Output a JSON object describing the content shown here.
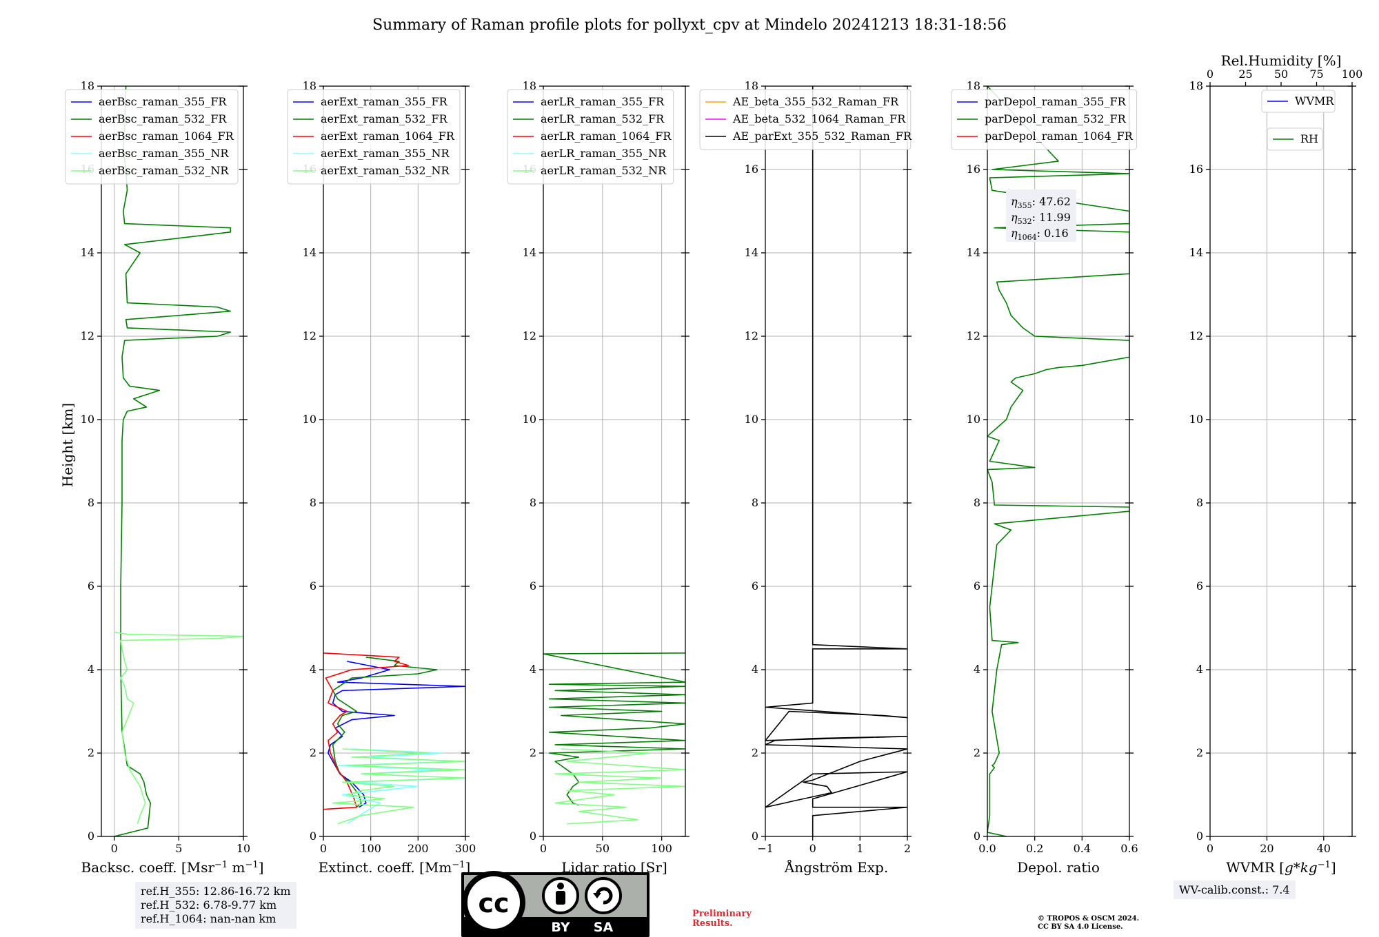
{
  "title": "Summary of Raman profile plots for pollyxt_cpv at Mindelo 20241213 18:31-18:56",
  "y_axis_label": "Height [km]",
  "colors": {
    "blue": "#0000ff",
    "green": "#008000",
    "red": "#ff0000",
    "cyan": "#80ffff",
    "lightgreen": "#80ff80",
    "orange": "#ffa500",
    "magenta": "#ff00ff",
    "black": "#000000",
    "grid": "#b0b0b0",
    "box": "#eef0f6",
    "preliminary": "#e8262b"
  },
  "chart_data": [
    {
      "type": "line",
      "panel": "backscatter",
      "xlabel": "Backsc. coeff. [Msr$^{-1}$ m$^{-1}$]",
      "ylabel": "Height [km]",
      "xlim": [
        -1,
        10
      ],
      "ylim": [
        0,
        18
      ],
      "xticks": [
        0,
        5,
        10
      ],
      "yticks": [
        0,
        2,
        4,
        6,
        8,
        10,
        12,
        14,
        16,
        18
      ],
      "grid": true,
      "legend_placement": "top-left",
      "series": [
        {
          "name": "aerBsc_raman_355_FR",
          "color": "#0000ff",
          "x": [],
          "y": []
        },
        {
          "name": "aerBsc_raman_532_FR",
          "color": "#008000",
          "x": [
            0.0,
            2.6,
            2.8,
            2.5,
            2.3,
            2.0,
            1.0,
            0.6,
            0.5,
            0.5,
            0.6,
            0.6,
            0.7,
            1.0,
            2.5,
            1.5,
            3.5,
            1.2,
            0.7,
            0.6,
            0.8,
            8.0,
            9.0,
            1.0,
            0.9,
            5.0,
            9.0,
            8.0,
            1.0,
            0.9,
            2.0,
            0.8,
            9.0,
            9.0,
            0.8,
            0.7,
            1.0,
            0.9,
            0.7,
            0.8,
            0.9
          ],
          "y": [
            0.0,
            0.2,
            0.8,
            1.0,
            1.3,
            1.5,
            1.7,
            2.5,
            4.0,
            6.0,
            8.0,
            9.5,
            10.0,
            10.2,
            10.3,
            10.5,
            10.7,
            10.8,
            11.0,
            11.5,
            11.9,
            12.0,
            12.1,
            12.2,
            12.4,
            12.5,
            12.6,
            12.7,
            12.8,
            13.5,
            14.0,
            14.2,
            14.5,
            14.6,
            14.7,
            15.0,
            15.5,
            16.0,
            16.5,
            17.0,
            18.0
          ]
        },
        {
          "name": "aerBsc_raman_1064_FR",
          "color": "#ff0000",
          "x": [],
          "y": []
        },
        {
          "name": "aerBsc_raman_355_NR",
          "color": "#80ffff",
          "x": [],
          "y": []
        },
        {
          "name": "aerBsc_raman_532_NR",
          "color": "#80ff80",
          "x": [
            1.8,
            2.0,
            2.4,
            2.0,
            1.2,
            0.8,
            0.6,
            1.5,
            1.0,
            0.8,
            0.5,
            1.0,
            0.8,
            0.6,
            0.5,
            8.0,
            10.0,
            1.0,
            0.0
          ],
          "y": [
            0.3,
            0.5,
            0.8,
            1.2,
            1.6,
            2.0,
            2.5,
            3.2,
            3.3,
            3.6,
            3.8,
            4.0,
            4.2,
            4.5,
            4.7,
            4.75,
            4.8,
            4.85,
            4.9
          ]
        }
      ]
    },
    {
      "type": "line",
      "panel": "extinction",
      "xlabel": "Extinct. coeff. [Mm$^{-1}$]",
      "xlim": [
        0,
        300
      ],
      "ylim": [
        0,
        18
      ],
      "xticks": [
        0,
        100,
        200,
        300
      ],
      "yticks": [
        0,
        2,
        4,
        6,
        8,
        10,
        12,
        14,
        16,
        18
      ],
      "grid": true,
      "legend_placement": "top-left",
      "series": [
        {
          "name": "aerExt_raman_355_FR",
          "color": "#0000ff",
          "x": [
            75,
            90,
            85,
            60,
            35,
            20,
            10,
            15,
            40,
            25,
            60,
            150,
            40,
            20,
            25,
            40,
            300,
            30,
            80,
            140,
            50
          ],
          "y": [
            0.7,
            0.8,
            1.0,
            1.3,
            1.5,
            1.8,
            2.0,
            2.2,
            2.4,
            2.6,
            2.8,
            2.9,
            3.0,
            3.2,
            3.4,
            3.5,
            3.6,
            3.7,
            3.8,
            4.0,
            4.2
          ]
        },
        {
          "name": "aerExt_raman_532_FR",
          "color": "#008000",
          "x": [
            70,
            80,
            75,
            55,
            35,
            25,
            20,
            45,
            30,
            40,
            70,
            30,
            20,
            60,
            200,
            240,
            150,
            160,
            90
          ],
          "y": [
            0.7,
            0.8,
            1.0,
            1.3,
            1.5,
            1.8,
            2.2,
            2.5,
            2.7,
            2.9,
            3.0,
            3.3,
            3.5,
            3.8,
            3.9,
            4.0,
            4.1,
            4.2,
            4.3
          ]
        },
        {
          "name": "aerExt_raman_1064_FR",
          "color": "#ff0000",
          "x": [
            0,
            70,
            65,
            50,
            30,
            15,
            10,
            30,
            20,
            35,
            50,
            10,
            20,
            5,
            60,
            180,
            150,
            160,
            0
          ],
          "y": [
            0.65,
            0.7,
            0.9,
            1.3,
            1.6,
            2.0,
            2.3,
            2.5,
            2.7,
            2.9,
            3.0,
            3.2,
            3.5,
            3.8,
            4.0,
            4.1,
            4.2,
            4.3,
            4.4
          ]
        },
        {
          "name": "aerExt_raman_355_NR",
          "color": "#80ffff",
          "x": [
            50,
            90,
            120,
            40,
            200,
            60,
            300,
            80,
            250,
            30,
            280,
            100,
            250,
            60
          ],
          "y": [
            0.3,
            0.6,
            0.8,
            1.0,
            1.2,
            1.3,
            1.4,
            1.5,
            1.6,
            1.7,
            1.8,
            1.9,
            2.0,
            2.1
          ]
        },
        {
          "name": "aerExt_raman_532_NR",
          "color": "#80ff80",
          "x": [
            30,
            80,
            190,
            20,
            130,
            50,
            80,
            150,
            40,
            300,
            80,
            300,
            50,
            300,
            60,
            220,
            40
          ],
          "y": [
            0.3,
            0.5,
            0.7,
            0.8,
            0.9,
            1.0,
            1.1,
            1.2,
            1.3,
            1.4,
            1.5,
            1.6,
            1.7,
            1.8,
            1.9,
            2.0,
            2.1
          ]
        }
      ]
    },
    {
      "type": "line",
      "panel": "lidar_ratio",
      "xlabel": "Lidar ratio [Sr]",
      "xlim": [
        0,
        120
      ],
      "ylim": [
        0,
        18
      ],
      "xticks": [
        0,
        50,
        100
      ],
      "yticks": [
        0,
        2,
        4,
        6,
        8,
        10,
        12,
        14,
        16,
        18
      ],
      "grid": true,
      "legend_placement": "top-left",
      "series": [
        {
          "name": "aerLR_raman_355_FR",
          "color": "#0000ff",
          "x": [],
          "y": []
        },
        {
          "name": "aerLR_raman_532_FR",
          "color": "#008000",
          "x": [
            30,
            25,
            20,
            25,
            30,
            25,
            10,
            30,
            5,
            120,
            10,
            120,
            5,
            90,
            120,
            15,
            100,
            5,
            120,
            5,
            120,
            10,
            120,
            5,
            120,
            0,
            120
          ],
          "y": [
            0.75,
            0.8,
            1.0,
            1.2,
            1.3,
            1.5,
            1.8,
            1.9,
            2.0,
            2.1,
            2.2,
            2.3,
            2.5,
            2.6,
            2.7,
            2.9,
            3.0,
            3.1,
            3.2,
            3.3,
            3.4,
            3.5,
            3.6,
            3.65,
            3.7,
            4.38,
            4.4
          ]
        },
        {
          "name": "aerLR_raman_1064_FR",
          "color": "#ff0000",
          "x": [],
          "y": []
        },
        {
          "name": "aerLR_raman_355_NR",
          "color": "#80ffff",
          "x": [],
          "y": []
        },
        {
          "name": "aerLR_raman_532_NR",
          "color": "#80ff80",
          "x": [
            20,
            80,
            30,
            70,
            10,
            60,
            20,
            120,
            30,
            100,
            10,
            120,
            20,
            90,
            15
          ],
          "y": [
            0.3,
            0.4,
            0.6,
            0.7,
            0.8,
            1.0,
            1.1,
            1.2,
            1.3,
            1.4,
            1.5,
            1.6,
            1.8,
            2.0,
            2.1
          ]
        }
      ]
    },
    {
      "type": "line",
      "panel": "angstrom",
      "xlabel": "Ångström Exp.",
      "xlim": [
        -1,
        2
      ],
      "ylim": [
        0,
        18
      ],
      "xticks": [
        -1,
        0,
        1,
        2
      ],
      "yticks": [
        0,
        2,
        4,
        6,
        8,
        10,
        12,
        14,
        16,
        18
      ],
      "grid": true,
      "legend_placement": "top-left",
      "series": [
        {
          "name": "AE_beta_355_532_Raman_FR",
          "color": "#ffa500",
          "x": [],
          "y": []
        },
        {
          "name": "AE_beta_532_1064_Raman_FR",
          "color": "#ff00ff",
          "x": [],
          "y": []
        },
        {
          "name": "AE_parExt_355_532_Raman_FR",
          "color": "#000000",
          "x": [
            0.0,
            0.0,
            2.0,
            0.0,
            0.0,
            2.0,
            0.0,
            -1.0,
            -0.2,
            0.2,
            0.4,
            0.3,
            -0.2,
            0.0,
            1.0,
            2.0,
            -1.0,
            -0.8,
            0.0,
            2.0,
            -1.0,
            -0.5,
            1.5,
            2.0,
            -1.0,
            0.0,
            0.0,
            2.0,
            0.0,
            0.0
          ],
          "y": [
            0.0,
            0.5,
            0.7,
            0.7,
            0.9,
            1.55,
            1.5,
            0.7,
            0.9,
            1.0,
            1.05,
            1.2,
            1.3,
            1.35,
            1.8,
            2.1,
            2.2,
            2.3,
            2.35,
            2.4,
            2.3,
            3.0,
            2.9,
            2.85,
            3.1,
            3.2,
            4.5,
            4.5,
            4.6,
            18.0
          ]
        }
      ]
    },
    {
      "type": "line",
      "panel": "depolarization",
      "xlabel": "Depol. ratio",
      "xlim": [
        0,
        0.6
      ],
      "ylim": [
        0,
        18
      ],
      "xticks": [
        0.0,
        0.2,
        0.4,
        0.6
      ],
      "yticks": [
        0,
        2,
        4,
        6,
        8,
        10,
        12,
        14,
        16,
        18
      ],
      "grid": true,
      "legend_placement": "top-left",
      "series": [
        {
          "name": "parDepol_raman_355_FR",
          "color": "#0000ff",
          "x": [],
          "y": []
        },
        {
          "name": "parDepol_raman_532_FR",
          "color": "#008000",
          "x": [
            0.08,
            0.0,
            0.01,
            0.01,
            0.03,
            0.02,
            0.03,
            0.05,
            0.02,
            0.04,
            0.06,
            0.13,
            0.02,
            0.01,
            0.02,
            0.04,
            0.1,
            0.03,
            0.6,
            0.6,
            0.03,
            0.02,
            0.0,
            0.2,
            0.01,
            0.05,
            0.0,
            0.08,
            0.1,
            0.15,
            0.1,
            0.12,
            0.2,
            0.25,
            0.3,
            0.4,
            0.6,
            0.6,
            0.6,
            0.2,
            0.15,
            0.1,
            0.08,
            0.06,
            0.05,
            0.04,
            0.6,
            0.6,
            0.6,
            0.03,
            0.6,
            0.6,
            0.02,
            0.01,
            0.6,
            0.02,
            0.3,
            0.0
          ],
          "y": [
            0.0,
            0.1,
            0.5,
            1.5,
            1.65,
            1.7,
            1.75,
            2.0,
            3.0,
            4.0,
            4.6,
            4.65,
            4.7,
            5.5,
            6.0,
            7.0,
            7.35,
            7.5,
            7.8,
            7.9,
            7.95,
            8.5,
            8.8,
            8.85,
            9.0,
            9.5,
            9.6,
            10.0,
            10.3,
            10.7,
            10.9,
            11.0,
            11.1,
            11.2,
            11.25,
            11.3,
            11.5,
            11.7,
            11.9,
            12.0,
            12.2,
            12.5,
            12.8,
            13.0,
            13.1,
            13.3,
            13.5,
            13.7,
            14.5,
            14.6,
            14.7,
            15.0,
            15.5,
            15.8,
            15.9,
            16.0,
            16.2,
            18.0
          ]
        },
        {
          "name": "parDepol_raman_1064_FR",
          "color": "#ff0000",
          "x": [],
          "y": []
        }
      ],
      "annotations": [
        {
          "label": "η",
          "sub": "355",
          "value": ": 47.62"
        },
        {
          "label": "η",
          "sub": "532",
          "value": ": 11.99"
        },
        {
          "label": "η",
          "sub": "1064",
          "value": ": 0.16"
        }
      ]
    },
    {
      "type": "line",
      "panel": "wvmr",
      "xlabel": "WVMR [$g*kg^{-1}$]",
      "top_xlabel": "Rel.Humidity [%]",
      "xlim": [
        0,
        50
      ],
      "ylim": [
        0,
        18
      ],
      "xticks": [
        0,
        20,
        40
      ],
      "top_xlim": [
        0,
        100
      ],
      "top_xticks": [
        0,
        25,
        50,
        75,
        100
      ],
      "yticks": [
        0,
        2,
        4,
        6,
        8,
        10,
        12,
        14,
        16,
        18
      ],
      "grid": true,
      "series": [
        {
          "name": "WVMR",
          "color": "#0000ff",
          "x": [],
          "y": [],
          "legend_placement": "top-right"
        },
        {
          "name": "RH",
          "color": "#008000",
          "x": [],
          "y": [],
          "legend_placement": "top-right"
        }
      ]
    }
  ],
  "reference_heights": [
    "ref.H_355: 12.86-16.72 km",
    "ref.H_532: 6.78-9.77 km",
    "ref.H_1064: nan-nan km"
  ],
  "wv_calib": "WV-calib.const.: 7.4",
  "license_badge": {
    "cc": "cc",
    "by": "BY",
    "sa": "SA"
  },
  "preliminary": [
    "Preliminary",
    "Results."
  ],
  "copyright": [
    "© TROPOS & OSCM 2024.",
    "CC BY SA 4.0 License."
  ]
}
